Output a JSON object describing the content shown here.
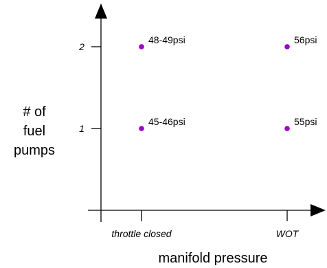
{
  "chart_data": {
    "type": "scatter",
    "title": "",
    "xlabel": "manifold pressure",
    "ylabel": [
      "# of",
      "fuel",
      "pumps"
    ],
    "x_categories": [
      "throttle closed",
      "WOT"
    ],
    "y_ticks": [
      1,
      2
    ],
    "ylim": [
      0,
      2.8
    ],
    "grid": false,
    "legend": "none",
    "point_color": "#9B00C8",
    "points": [
      {
        "x": "throttle closed",
        "y": 1,
        "label": "45-46psi"
      },
      {
        "x": "throttle closed",
        "y": 2,
        "label": "48-49psi"
      },
      {
        "x": "WOT",
        "y": 1,
        "label": "55psi"
      },
      {
        "x": "WOT",
        "y": 2,
        "label": "56psi"
      }
    ]
  }
}
